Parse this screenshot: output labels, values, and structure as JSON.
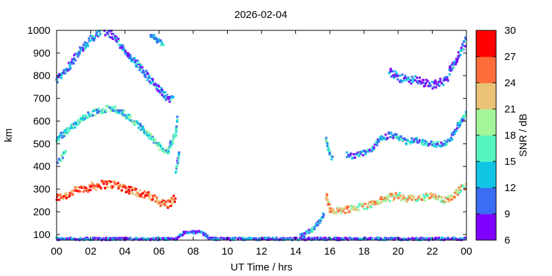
{
  "chart_data": {
    "type": "scatter",
    "title": "2026-02-04",
    "xlabel": "UT Time / hrs",
    "ylabel": "km",
    "xlim": [
      0,
      24
    ],
    "ylim": [
      75,
      1000
    ],
    "xticks": [
      "00",
      "02",
      "04",
      "06",
      "08",
      "10",
      "12",
      "14",
      "16",
      "18",
      "20",
      "22",
      "00"
    ],
    "yticks": [
      100,
      200,
      300,
      400,
      500,
      600,
      700,
      800,
      900,
      1000
    ],
    "colorbar": {
      "label": "SNR / dB",
      "min": 6,
      "max": 30,
      "ticks": [
        6,
        9,
        12,
        15,
        18,
        21,
        24,
        27,
        30
      ],
      "colors": [
        "#7f00ff",
        "#3a6cf4",
        "#10c4e4",
        "#55f5c0",
        "#a4f59a",
        "#eac276",
        "#ff6d3b",
        "#ff0000"
      ]
    },
    "series": [
      {
        "traces": [
          {
            "points": [
              [
                0.0,
                260
              ],
              [
                0.5,
                272
              ],
              [
                1.0,
                288
              ],
              [
                1.5,
                300
              ],
              [
                2.0,
                310
              ],
              [
                2.5,
                318
              ],
              [
                3.0,
                322
              ],
              [
                3.5,
                318
              ],
              [
                4.0,
                305
              ],
              [
                4.5,
                292
              ],
              [
                5.0,
                280
              ],
              [
                5.5,
                265
              ],
              [
                6.0,
                245
              ],
              [
                6.5,
                232
              ],
              [
                7.0,
                262
              ]
            ],
            "snr": 26,
            "jitter": 18
          },
          {
            "points": [
              [
                15.8,
                265
              ],
              [
                16.0,
                210
              ],
              [
                16.5,
                205
              ],
              [
                17.0,
                212
              ],
              [
                17.5,
                218
              ],
              [
                18.0,
                225
              ],
              [
                18.5,
                235
              ],
              [
                19.0,
                250
              ],
              [
                19.5,
                262
              ],
              [
                20.0,
                270
              ],
              [
                20.5,
                260
              ],
              [
                21.0,
                255
              ],
              [
                21.5,
                262
              ],
              [
                22.0,
                270
              ],
              [
                22.5,
                250
              ],
              [
                23.0,
                260
              ],
              [
                23.5,
                290
              ],
              [
                24.0,
                320
              ]
            ],
            "snr": 22,
            "jitter": 16
          }
        ]
      },
      {
        "traces": [
          {
            "points": [
              [
                0.0,
                420
              ],
              [
                0.3,
                440
              ],
              [
                0.6,
                460
              ]
            ],
            "snr": 14,
            "jitter": 12
          },
          {
            "points": [
              [
                0.0,
                520
              ],
              [
                0.5,
                550
              ],
              [
                1.0,
                580
              ],
              [
                1.5,
                610
              ],
              [
                2.0,
                630
              ],
              [
                2.5,
                645
              ],
              [
                3.0,
                655
              ],
              [
                3.5,
                650
              ],
              [
                4.0,
                630
              ],
              [
                4.5,
                600
              ],
              [
                5.0,
                570
              ],
              [
                5.5,
                530
              ],
              [
                6.0,
                490
              ],
              [
                6.5,
                465
              ],
              [
                7.0,
                550
              ],
              [
                7.1,
                620
              ]
            ],
            "snr": 15,
            "jitter": 14
          },
          {
            "points": [
              [
                7.0,
                380
              ],
              [
                7.1,
                430
              ],
              [
                7.2,
                470
              ]
            ],
            "snr": 13,
            "jitter": 10
          },
          {
            "points": [
              [
                15.8,
                520
              ],
              [
                16.0,
                450
              ],
              [
                16.2,
                430
              ]
            ],
            "snr": 14,
            "jitter": 10
          },
          {
            "points": [
              [
                17.0,
                450
              ],
              [
                17.5,
                445
              ],
              [
                18.0,
                460
              ],
              [
                18.5,
                480
              ],
              [
                19.0,
                520
              ],
              [
                19.5,
                540
              ],
              [
                20.0,
                530
              ],
              [
                20.5,
                505
              ],
              [
                21.0,
                520
              ],
              [
                21.5,
                505
              ],
              [
                22.0,
                500
              ],
              [
                22.5,
                495
              ],
              [
                23.0,
                510
              ],
              [
                23.5,
                580
              ],
              [
                24.0,
                640
              ]
            ],
            "snr": 12,
            "jitter": 12
          }
        ]
      },
      {
        "traces": [
          {
            "points": [
              [
                0.0,
                780
              ],
              [
                0.5,
                820
              ],
              [
                1.0,
                870
              ],
              [
                1.5,
                920
              ],
              [
                2.0,
                960
              ],
              [
                2.5,
                990
              ],
              [
                3.0,
                995
              ],
              [
                3.5,
                960
              ],
              [
                4.0,
                910
              ],
              [
                4.5,
                870
              ],
              [
                5.0,
                830
              ],
              [
                5.5,
                780
              ],
              [
                6.0,
                740
              ],
              [
                6.5,
                700
              ],
              [
                6.9,
                690
              ]
            ],
            "snr": 11,
            "jitter": 16
          },
          {
            "points": [
              [
                5.5,
                980
              ],
              [
                6.0,
                950
              ],
              [
                6.3,
                940
              ]
            ],
            "snr": 13,
            "jitter": 12
          },
          {
            "points": [
              [
                19.5,
                820
              ],
              [
                20.0,
                790
              ],
              [
                21.0,
                780
              ],
              [
                22.0,
                760
              ],
              [
                22.5,
                770
              ],
              [
                23.0,
                790
              ]
            ],
            "snr": 10,
            "jitter": 18
          },
          {
            "points": [
              [
                23.0,
                820
              ],
              [
                23.5,
                880
              ],
              [
                24.0,
                960
              ]
            ],
            "snr": 11,
            "jitter": 16
          }
        ]
      },
      {
        "traces": [
          {
            "points": [
              [
                0.0,
                80
              ],
              [
                7.0,
                80
              ],
              [
                7.5,
                110
              ],
              [
                8.5,
                110
              ],
              [
                9.0,
                80
              ],
              [
                24.0,
                80
              ]
            ],
            "snr": 10,
            "jitter": 6
          },
          {
            "points": [
              [
                14.3,
                90
              ],
              [
                15.0,
                120
              ],
              [
                15.5,
                170
              ],
              [
                15.7,
                200
              ]
            ],
            "snr": 13,
            "jitter": 10
          }
        ]
      }
    ]
  }
}
